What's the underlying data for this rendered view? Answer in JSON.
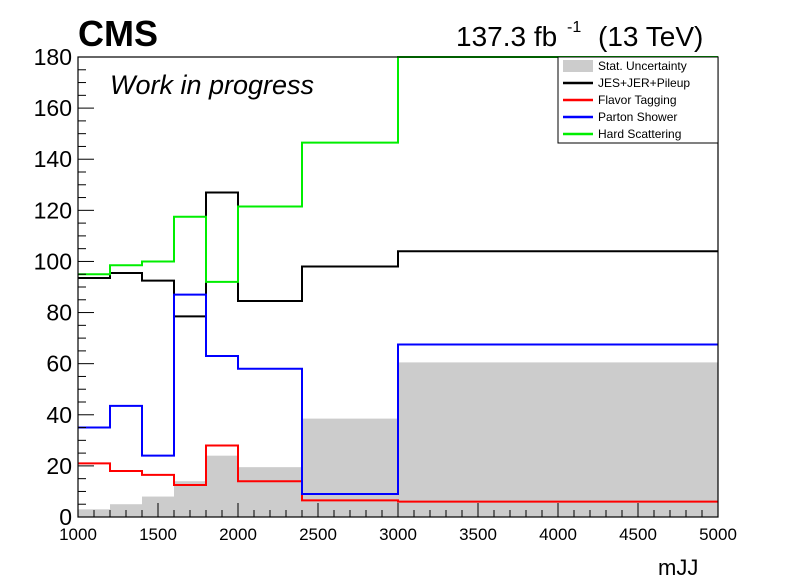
{
  "header": {
    "experiment": "CMS",
    "lumi_value": "137.3 fb",
    "lumi_exp": "-1",
    "energy": "(13 TeV)",
    "status": "Work in progress"
  },
  "chart_data": {
    "type": "step",
    "xlabel": "mJJ",
    "ylabel": "",
    "xlim": [
      1000,
      5000
    ],
    "ylim": [
      0,
      180
    ],
    "x_ticks": [
      1000,
      1500,
      2000,
      2500,
      3000,
      3500,
      4000,
      4500,
      5000
    ],
    "y_ticks": [
      0,
      20,
      40,
      60,
      80,
      100,
      120,
      140,
      160,
      180
    ],
    "bin_edges": [
      1000,
      1200,
      1400,
      1600,
      1800,
      2000,
      2400,
      3000,
      5000
    ],
    "legend_position": "top-right",
    "stat_uncertainty": {
      "name": "Stat. Uncertainty",
      "color": "#cccccc",
      "values": [
        3,
        5,
        8,
        14,
        24,
        19.5,
        38.5,
        60.5
      ]
    },
    "series": [
      {
        "name": "JES+JER+Pileup",
        "color": "#000000",
        "values": [
          93.5,
          95.5,
          92.5,
          78.5,
          127,
          84.5,
          98,
          104
        ]
      },
      {
        "name": "Flavor Tagging",
        "color": "#ff0000",
        "values": [
          21,
          18,
          16.5,
          12.5,
          28,
          14,
          6.5,
          6
        ]
      },
      {
        "name": "Parton Shower",
        "color": "#0000ff",
        "values": [
          35,
          43.5,
          24,
          87,
          63,
          58,
          9,
          67.5
        ]
      },
      {
        "name": "Hard Scattering",
        "color": "#00ee00",
        "values": [
          95,
          98.5,
          100,
          117.5,
          92,
          121.5,
          146.5,
          180
        ]
      }
    ]
  }
}
